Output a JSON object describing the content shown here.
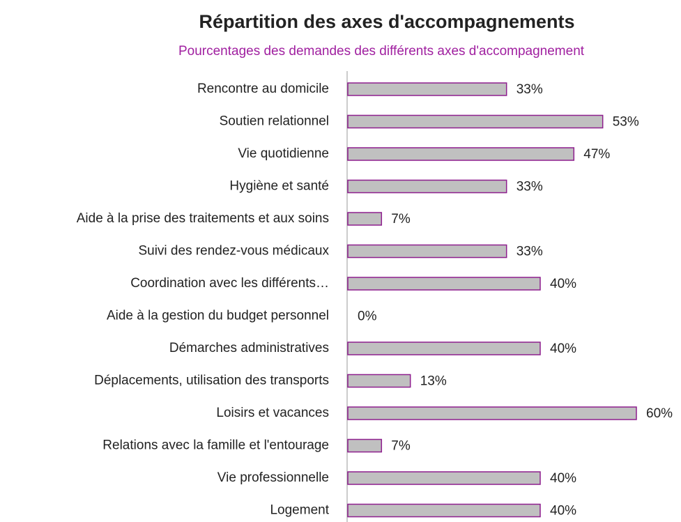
{
  "chart_data": {
    "type": "bar",
    "orientation": "horizontal",
    "title": "Répartition des axes d'accompagnements",
    "subtitle": "Pourcentages des demandes des différents axes d'accompagnement",
    "categories": [
      "Rencontre au domicile",
      "Soutien relationnel",
      "Vie quotidienne",
      "Hygiène et santé",
      "Aide à la prise des traitements et aux soins",
      "Suivi des rendez-vous médicaux",
      "Coordination avec les différents…",
      "Aide à la gestion du budget personnel",
      "Démarches administratives",
      "Déplacements, utilisation des transports",
      "Loisirs et vacances",
      "Relations avec la famille et l'entourage",
      "Vie professionnelle",
      "Logement"
    ],
    "values": [
      33,
      53,
      47,
      33,
      7,
      33,
      40,
      0,
      40,
      13,
      60,
      7,
      40,
      40
    ],
    "value_labels": [
      "33%",
      "53%",
      "47%",
      "33%",
      "7%",
      "33%",
      "40%",
      "0%",
      "40%",
      "13%",
      "60%",
      "7%",
      "40%",
      "40%"
    ],
    "color": "#c0c0c0",
    "edge_color": "#8e1f8e"
  }
}
